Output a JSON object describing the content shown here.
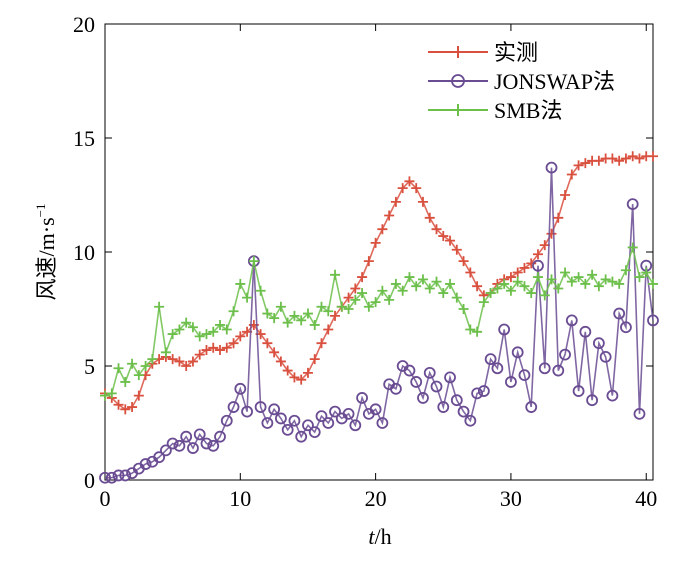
{
  "chart_data": {
    "type": "line",
    "title": "",
    "xlabel_var": "t",
    "xlabel_unit": "/h",
    "ylabel_main": "风速/m·s",
    "ylabel_sup": "−1",
    "xlim": [
      0,
      40.5
    ],
    "ylim": [
      0,
      20
    ],
    "xticks": [
      0,
      10,
      20,
      30,
      40
    ],
    "yticks": [
      0,
      5,
      10,
      15,
      20
    ],
    "legend_position": "top-right",
    "series": [
      {
        "name": "实测",
        "color": "#d9503f",
        "marker": "plus",
        "x": [
          0,
          0.5,
          1,
          1.5,
          2,
          2.5,
          3,
          3.5,
          4,
          4.5,
          5,
          5.5,
          6,
          6.5,
          7,
          7.5,
          8,
          8.5,
          9,
          9.5,
          10,
          10.5,
          11,
          11.5,
          12,
          12.5,
          13,
          13.5,
          14,
          14.5,
          15,
          15.5,
          16,
          16.5,
          17,
          17.5,
          18,
          18.5,
          19,
          19.5,
          20,
          20.5,
          21,
          21.5,
          22,
          22.5,
          23,
          23.5,
          24,
          24.5,
          25,
          25.5,
          26,
          26.5,
          27,
          27.5,
          28,
          28.5,
          29,
          29.5,
          30,
          30.5,
          31,
          31.5,
          32,
          32.5,
          33,
          33.5,
          34,
          34.5,
          35,
          35.5,
          36,
          36.5,
          37,
          37.5,
          38,
          38.5,
          39,
          39.5,
          40,
          40.5
        ],
        "values": [
          3.8,
          3.6,
          3.3,
          3.1,
          3.2,
          3.7,
          4.6,
          5.1,
          5.3,
          5.4,
          5.3,
          5.2,
          5.0,
          5.2,
          5.5,
          5.7,
          5.8,
          5.7,
          5.8,
          6.0,
          6.3,
          6.5,
          6.8,
          6.4,
          6.0,
          5.6,
          5.2,
          4.8,
          4.5,
          4.4,
          4.7,
          5.3,
          6.0,
          6.6,
          7.2,
          7.6,
          8.0,
          8.4,
          8.9,
          9.6,
          10.4,
          11.0,
          11.6,
          12.2,
          12.8,
          13.1,
          12.8,
          12.2,
          11.5,
          11.0,
          10.7,
          10.5,
          10.1,
          9.6,
          9.1,
          8.5,
          8.1,
          8.2,
          8.6,
          8.8,
          8.9,
          9.1,
          9.3,
          9.5,
          9.9,
          10.3,
          10.8,
          11.5,
          12.5,
          13.4,
          13.8,
          13.9,
          14.0,
          14.0,
          14.1,
          14.1,
          14.0,
          14.1,
          14.2,
          14.1,
          14.2,
          14.2
        ]
      },
      {
        "name": "JONSWAP法",
        "color": "#6a4c93",
        "marker": "circle",
        "x": [
          0,
          0.5,
          1,
          1.5,
          2,
          2.5,
          3,
          3.5,
          4,
          4.5,
          5,
          5.5,
          6,
          6.5,
          7,
          7.5,
          8,
          8.5,
          9,
          9.5,
          10,
          10.5,
          11,
          11.5,
          12,
          12.5,
          13,
          13.5,
          14,
          14.5,
          15,
          15.5,
          16,
          16.5,
          17,
          17.5,
          18,
          18.5,
          19,
          19.5,
          20,
          20.5,
          21,
          21.5,
          22,
          22.5,
          23,
          23.5,
          24,
          24.5,
          25,
          25.5,
          26,
          26.5,
          27,
          27.5,
          28,
          28.5,
          29,
          29.5,
          30,
          30.5,
          31,
          31.5,
          32,
          32.5,
          33,
          33.5,
          34,
          34.5,
          35,
          35.5,
          36,
          36.5,
          37,
          37.5,
          38,
          38.5,
          39,
          39.5,
          40,
          40.5
        ],
        "values": [
          0.1,
          0.1,
          0.2,
          0.2,
          0.3,
          0.5,
          0.7,
          0.8,
          1.0,
          1.3,
          1.6,
          1.5,
          1.9,
          1.4,
          2.0,
          1.6,
          1.5,
          1.9,
          2.6,
          3.2,
          4.0,
          3.0,
          9.6,
          3.2,
          2.5,
          3.1,
          2.7,
          2.2,
          2.6,
          1.9,
          2.4,
          2.1,
          2.8,
          2.5,
          3.0,
          2.7,
          2.9,
          2.4,
          3.6,
          2.9,
          3.1,
          2.5,
          4.2,
          4.0,
          5.0,
          4.8,
          4.3,
          3.6,
          4.7,
          4.1,
          3.2,
          4.5,
          3.5,
          3.0,
          2.6,
          3.8,
          3.9,
          5.3,
          4.9,
          6.6,
          4.3,
          5.6,
          4.6,
          3.2,
          9.4,
          4.9,
          13.7,
          4.8,
          5.5,
          7.0,
          3.9,
          6.5,
          3.5,
          6.0,
          5.4,
          3.7,
          7.3,
          6.7,
          12.1,
          2.9,
          9.4,
          7.0
        ]
      },
      {
        "name": "SMB法",
        "color": "#6cbf4a",
        "marker": "plus",
        "x": [
          0,
          0.5,
          1,
          1.5,
          2,
          2.5,
          3,
          3.5,
          4,
          4.5,
          5,
          5.5,
          6,
          6.5,
          7,
          7.5,
          8,
          8.5,
          9,
          9.5,
          10,
          10.5,
          11,
          11.5,
          12,
          12.5,
          13,
          13.5,
          14,
          14.5,
          15,
          15.5,
          16,
          16.5,
          17,
          17.5,
          18,
          18.5,
          19,
          19.5,
          20,
          20.5,
          21,
          21.5,
          22,
          22.5,
          23,
          23.5,
          24,
          24.5,
          25,
          25.5,
          26,
          26.5,
          27,
          27.5,
          28,
          28.5,
          29,
          29.5,
          30,
          30.5,
          31,
          31.5,
          32,
          32.5,
          33,
          33.5,
          34,
          34.5,
          35,
          35.5,
          36,
          36.5,
          37,
          37.5,
          38,
          38.5,
          39,
          39.5,
          40,
          40.5
        ],
        "values": [
          3.7,
          3.8,
          4.9,
          4.3,
          5.1,
          4.6,
          5.0,
          5.3,
          7.6,
          5.6,
          6.4,
          6.6,
          6.9,
          6.7,
          6.3,
          6.4,
          6.5,
          6.8,
          6.6,
          7.4,
          8.6,
          8.0,
          9.6,
          8.3,
          7.3,
          7.1,
          7.6,
          6.9,
          7.2,
          7.0,
          7.3,
          6.8,
          7.6,
          7.4,
          9.0,
          7.6,
          7.5,
          7.9,
          8.2,
          7.6,
          7.8,
          8.3,
          7.9,
          8.6,
          8.3,
          8.9,
          8.5,
          8.8,
          8.4,
          8.7,
          8.2,
          8.6,
          8.0,
          7.5,
          6.6,
          6.5,
          7.8,
          8.2,
          8.4,
          8.6,
          8.3,
          8.7,
          8.5,
          8.2,
          8.9,
          8.1,
          8.8,
          8.4,
          9.1,
          8.7,
          8.9,
          8.6,
          9.0,
          8.5,
          8.8,
          8.7,
          8.6,
          9.2,
          10.2,
          8.9,
          9.1,
          8.6
        ]
      }
    ]
  }
}
